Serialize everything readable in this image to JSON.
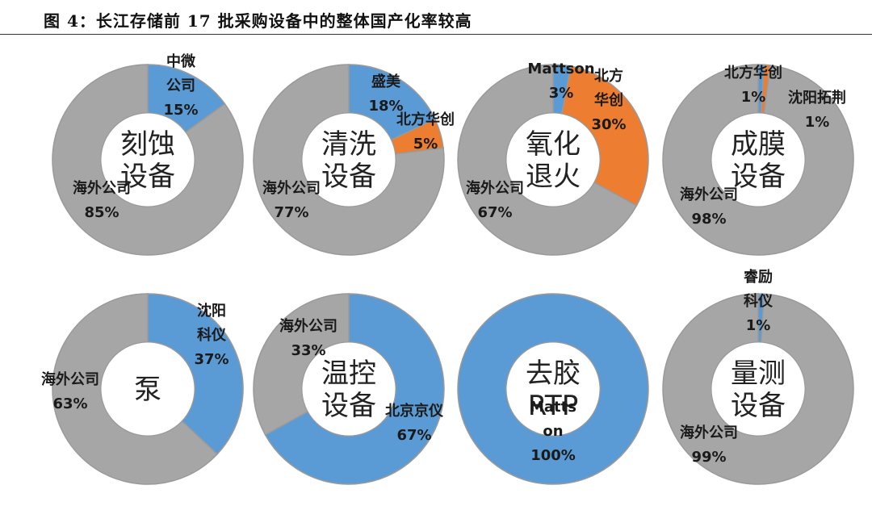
{
  "figure_title": "图 4：长江存储前 17 批采购设备中的整体国产化率较高",
  "colors": {
    "domestic_blue": "#5b9bd5",
    "domestic_orange": "#ed7d31",
    "foreign_gray": "#a6a6a6",
    "stroke": "#9a9a9a"
  },
  "chart_data": [
    {
      "type": "pie",
      "donut": true,
      "center_lines": [
        "刻蚀",
        "设备"
      ],
      "slices": [
        {
          "lines": [
            "中微",
            "公司",
            "15%"
          ],
          "value": 15,
          "color": "#5b9bd5"
        },
        {
          "lines": [
            "海外公司",
            "85%"
          ],
          "value": 85,
          "color": "#a6a6a6"
        }
      ]
    },
    {
      "type": "pie",
      "donut": true,
      "center_lines": [
        "清洗",
        "设备"
      ],
      "slices": [
        {
          "lines": [
            "盛美",
            "18%"
          ],
          "value": 18,
          "color": "#5b9bd5"
        },
        {
          "lines": [
            "北方华创",
            "5%"
          ],
          "value": 5,
          "color": "#ed7d31"
        },
        {
          "lines": [
            "海外公司",
            "77%"
          ],
          "value": 77,
          "color": "#a6a6a6"
        }
      ]
    },
    {
      "type": "pie",
      "donut": true,
      "center_lines": [
        "氧化",
        "退火"
      ],
      "slices": [
        {
          "lines": [
            "Mattson",
            "3%"
          ],
          "value": 3,
          "color": "#5b9bd5"
        },
        {
          "lines": [
            "北方",
            "华创",
            "30%"
          ],
          "value": 30,
          "color": "#ed7d31"
        },
        {
          "lines": [
            "海外公司",
            "67%"
          ],
          "value": 67,
          "color": "#a6a6a6"
        }
      ]
    },
    {
      "type": "pie",
      "donut": true,
      "center_lines": [
        "成膜",
        "设备"
      ],
      "slices": [
        {
          "lines": [
            "北方华创",
            "1%"
          ],
          "value": 1,
          "color": "#5b9bd5"
        },
        {
          "lines": [
            "沈阳拓荆",
            "1%"
          ],
          "value": 1,
          "color": "#ed7d31"
        },
        {
          "lines": [
            "海外公司",
            "98%"
          ],
          "value": 98,
          "color": "#a6a6a6"
        }
      ]
    },
    {
      "type": "pie",
      "donut": true,
      "center_lines": [
        "泵"
      ],
      "slices": [
        {
          "lines": [
            "沈阳",
            "科仪",
            "37%"
          ],
          "value": 37,
          "color": "#5b9bd5"
        },
        {
          "lines": [
            "海外公司",
            "63%"
          ],
          "value": 63,
          "color": "#a6a6a6"
        }
      ]
    },
    {
      "type": "pie",
      "donut": true,
      "center_lines": [
        "温控",
        "设备"
      ],
      "slices": [
        {
          "lines": [
            "北京京仪",
            "67%"
          ],
          "value": 67,
          "color": "#5b9bd5"
        },
        {
          "lines": [
            "海外公司",
            "33%"
          ],
          "value": 33,
          "color": "#a6a6a6"
        }
      ]
    },
    {
      "type": "pie",
      "donut": true,
      "center_lines": [
        "去胶",
        "RTP"
      ],
      "slices": [
        {
          "lines": [
            "Matts",
            "on",
            "100%"
          ],
          "value": 100,
          "color": "#5b9bd5"
        }
      ]
    },
    {
      "type": "pie",
      "donut": true,
      "center_lines": [
        "量测",
        "设备"
      ],
      "slices": [
        {
          "lines": [
            "睿励",
            "科仪",
            "1%"
          ],
          "value": 1,
          "color": "#5b9bd5"
        },
        {
          "lines": [
            "海外公司",
            "99%"
          ],
          "value": 99,
          "color": "#a6a6a6"
        }
      ]
    }
  ]
}
